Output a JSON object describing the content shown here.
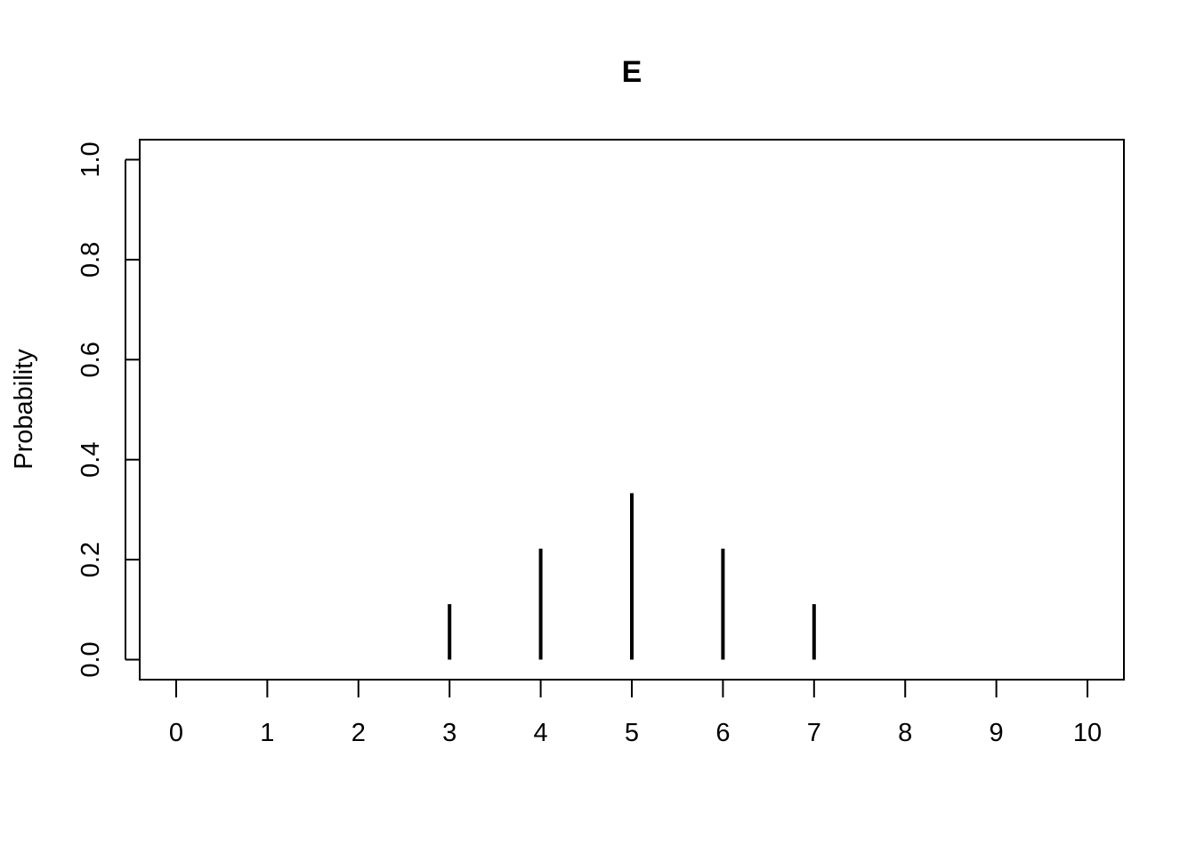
{
  "chart_data": {
    "type": "bar",
    "title": "E",
    "xlabel": "",
    "ylabel": "Probability",
    "x": [
      0,
      1,
      2,
      3,
      4,
      5,
      6,
      7,
      8,
      9,
      10
    ],
    "values": [
      0,
      0,
      0,
      0.111,
      0.222,
      0.333,
      0.222,
      0.111,
      0,
      0,
      0
    ],
    "xticks": [
      "0",
      "1",
      "2",
      "3",
      "4",
      "5",
      "6",
      "7",
      "8",
      "9",
      "10"
    ],
    "yticks": [
      "0.0",
      "0.2",
      "0.4",
      "0.6",
      "0.8",
      "1.0"
    ],
    "ytick_values": [
      0,
      0.2,
      0.4,
      0.6,
      0.8,
      1.0
    ],
    "xlim": [
      -0.4,
      10.4
    ],
    "ylim": [
      -0.04,
      1.04
    ],
    "grid": false,
    "legend": "none"
  }
}
